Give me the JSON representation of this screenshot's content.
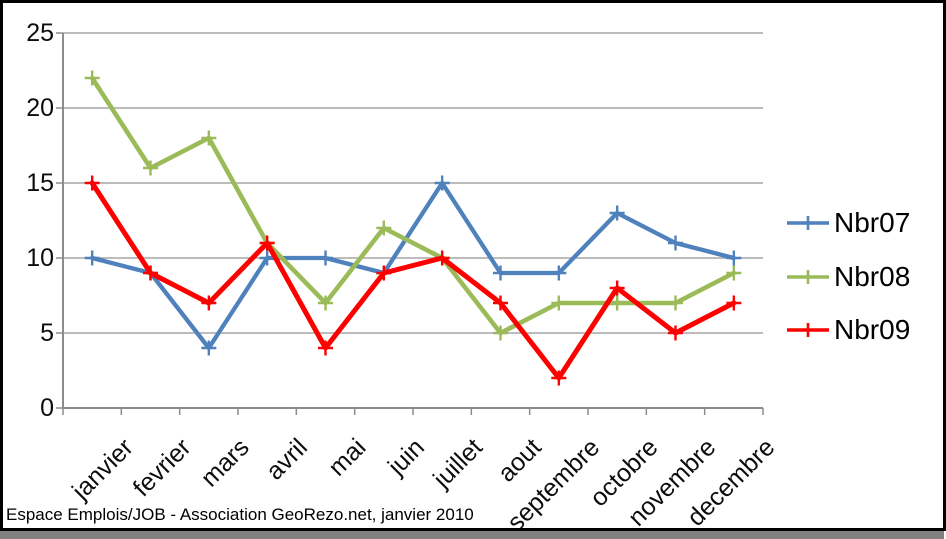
{
  "window": {
    "footer": "Espace Emplois/JOB - Association GeoRezo.net, janvier 2010"
  },
  "colors": {
    "background": "#ffffff",
    "frame_border": "#000000",
    "bottom_bar": "#808080",
    "gridline": "#a6a6a6",
    "axis": "#8c8c8c",
    "text": "#0d0d0d",
    "series_blue": "#4f81bd",
    "series_green": "#9bbb59",
    "series_red": "#fe0000"
  },
  "chart_data": {
    "type": "line",
    "title": "",
    "xlabel": "",
    "ylabel": "",
    "grid": true,
    "legend_position": "right",
    "marker": "plus",
    "ylim": [
      0,
      25
    ],
    "ytick_step": 5,
    "yticks": [
      "0",
      "5",
      "10",
      "15",
      "20",
      "25"
    ],
    "categories": [
      "janvier",
      "fevrier",
      "mars",
      "avril",
      "mai",
      "juin",
      "juillet",
      "aout",
      "septembre",
      "octobre",
      "novembre",
      "decembre"
    ],
    "series": [
      {
        "name": "Nbr07",
        "color": "#4f81bd",
        "values": [
          10,
          9,
          4,
          10,
          10,
          9,
          15,
          9,
          9,
          13,
          11,
          10
        ]
      },
      {
        "name": "Nbr08",
        "color": "#9bbb59",
        "values": [
          22,
          16,
          18,
          11,
          7,
          12,
          10,
          5,
          7,
          7,
          7,
          9
        ]
      },
      {
        "name": "Nbr09",
        "color": "#fe0000",
        "values": [
          15,
          9,
          7,
          11,
          4,
          9,
          10,
          7,
          2,
          8,
          5,
          7
        ]
      }
    ]
  }
}
